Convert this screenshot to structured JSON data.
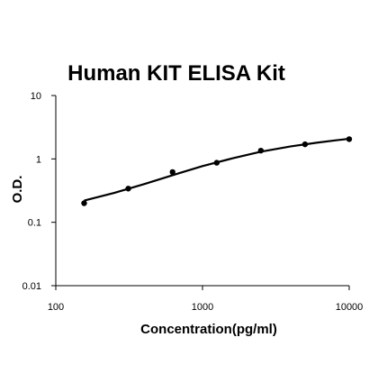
{
  "chart_data": {
    "type": "scatter",
    "title": "Human KIT ELISA Kit",
    "xlabel": "Concentration(pg/ml)",
    "ylabel": "O.D.",
    "x_scale": "log",
    "y_scale": "log",
    "xlim": [
      100,
      10000
    ],
    "ylim": [
      0.01,
      10
    ],
    "x_ticks": [
      100,
      1000,
      10000
    ],
    "x_tick_labels": [
      "100",
      "1000",
      "10000"
    ],
    "y_ticks": [
      0.01,
      0.1,
      1,
      10
    ],
    "y_tick_labels": [
      "0.01",
      "0.1",
      "1",
      "10"
    ],
    "grid": false,
    "legend": "none",
    "series": [
      {
        "points": [
          {
            "x": 156,
            "y": 0.2
          },
          {
            "x": 312,
            "y": 0.34
          },
          {
            "x": 625,
            "y": 0.62
          },
          {
            "x": 1250,
            "y": 0.87
          },
          {
            "x": 2500,
            "y": 1.35
          },
          {
            "x": 5000,
            "y": 1.7
          },
          {
            "x": 10000,
            "y": 2.05
          }
        ],
        "fit_curve": [
          {
            "x": 156,
            "y": 0.22
          },
          {
            "x": 250,
            "y": 0.29
          },
          {
            "x": 400,
            "y": 0.4
          },
          {
            "x": 700,
            "y": 0.6
          },
          {
            "x": 1000,
            "y": 0.77
          },
          {
            "x": 1600,
            "y": 1.02
          },
          {
            "x": 2500,
            "y": 1.3
          },
          {
            "x": 4000,
            "y": 1.58
          },
          {
            "x": 6000,
            "y": 1.8
          },
          {
            "x": 8000,
            "y": 1.96
          },
          {
            "x": 10000,
            "y": 2.08
          }
        ]
      }
    ],
    "colors": {
      "marker": "#000000",
      "line": "#000000",
      "axis": "#000000"
    }
  }
}
